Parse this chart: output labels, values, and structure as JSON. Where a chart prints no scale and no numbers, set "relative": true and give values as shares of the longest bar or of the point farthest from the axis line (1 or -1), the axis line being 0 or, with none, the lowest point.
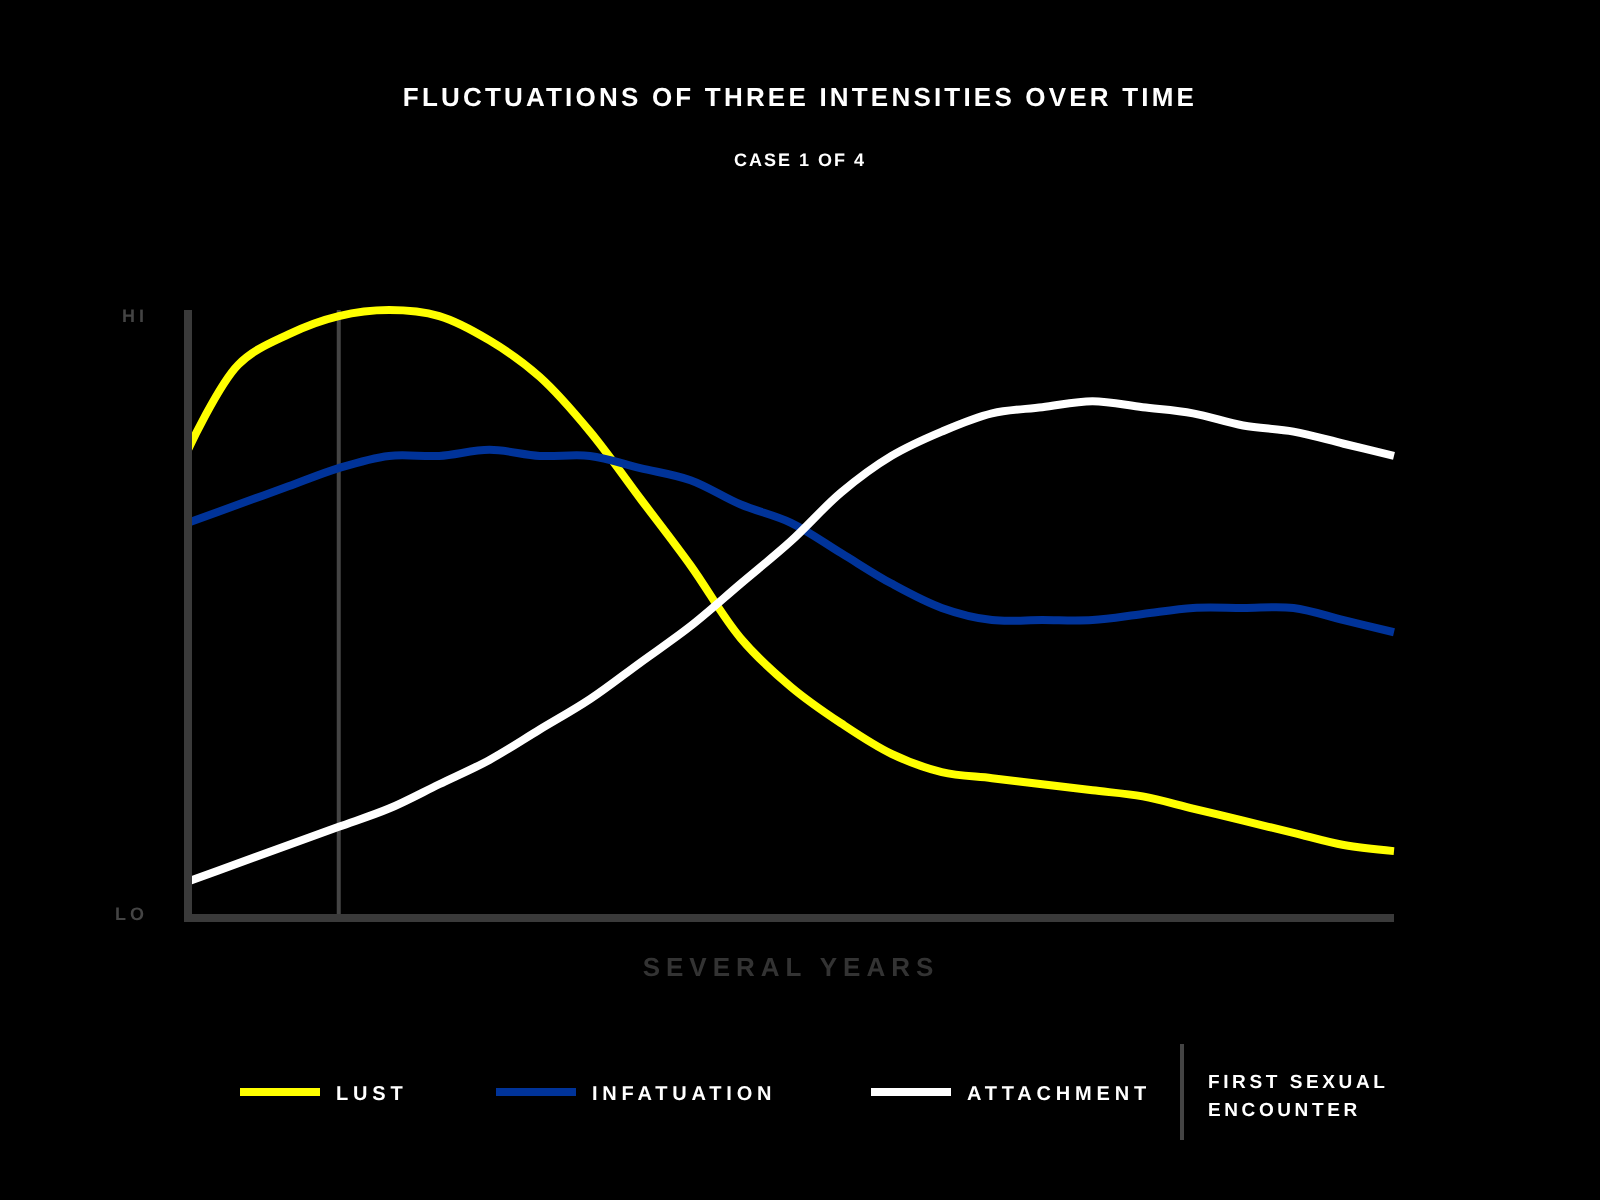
{
  "chart_data": {
    "type": "line",
    "title": "FLUCTUATIONS OF THREE INTENSITIES OVER TIME",
    "subtitle": "CASE 1 OF 4",
    "xlabel": "SEVERAL YEARS",
    "relative": true,
    "legend": "bottom",
    "line_style": "solid",
    "annotations": [
      "HI",
      "LO",
      "FIRST SEXUAL ENCOUNTER"
    ],
    "categories": [
      null,
      null,
      null,
      null,
      null,
      null,
      null,
      null,
      null,
      null,
      null,
      null,
      null,
      null,
      null,
      null,
      null,
      null,
      null,
      null,
      null,
      null,
      null,
      null,
      null
    ],
    "series": [
      {
        "name": "LUST",
        "color": "#ffff00",
        "values": [
          0.77,
          0.91,
          0.96,
          0.99,
          1,
          0.99,
          0.95,
          0.89,
          0.8,
          0.69,
          0.58,
          0.46,
          0.38,
          0.32,
          0.27,
          0.24,
          0.23,
          0.22,
          0.21,
          0.2,
          0.18,
          0.16,
          0.14,
          0.12,
          0.11
        ]
      },
      {
        "name": "INFATUATION",
        "color": "#003399",
        "values": [
          0.65,
          0.68,
          0.71,
          0.74,
          0.76,
          0.76,
          0.77,
          0.76,
          0.76,
          0.74,
          0.72,
          0.68,
          0.65,
          0.6,
          0.55,
          0.51,
          0.49,
          0.49,
          0.49,
          0.5,
          0.51,
          0.51,
          0.51,
          0.49,
          0.47
        ]
      },
      {
        "name": "ATTACHMENT",
        "color": "#ffffff",
        "values": [
          0.06,
          0.09,
          0.12,
          0.15,
          0.18,
          0.22,
          0.26,
          0.31,
          0.36,
          0.42,
          0.48,
          0.55,
          0.62,
          0.7,
          0.76,
          0.8,
          0.83,
          0.84,
          0.85,
          0.84,
          0.83,
          0.81,
          0.8,
          0.78,
          0.76
        ]
      }
    ]
  }
}
